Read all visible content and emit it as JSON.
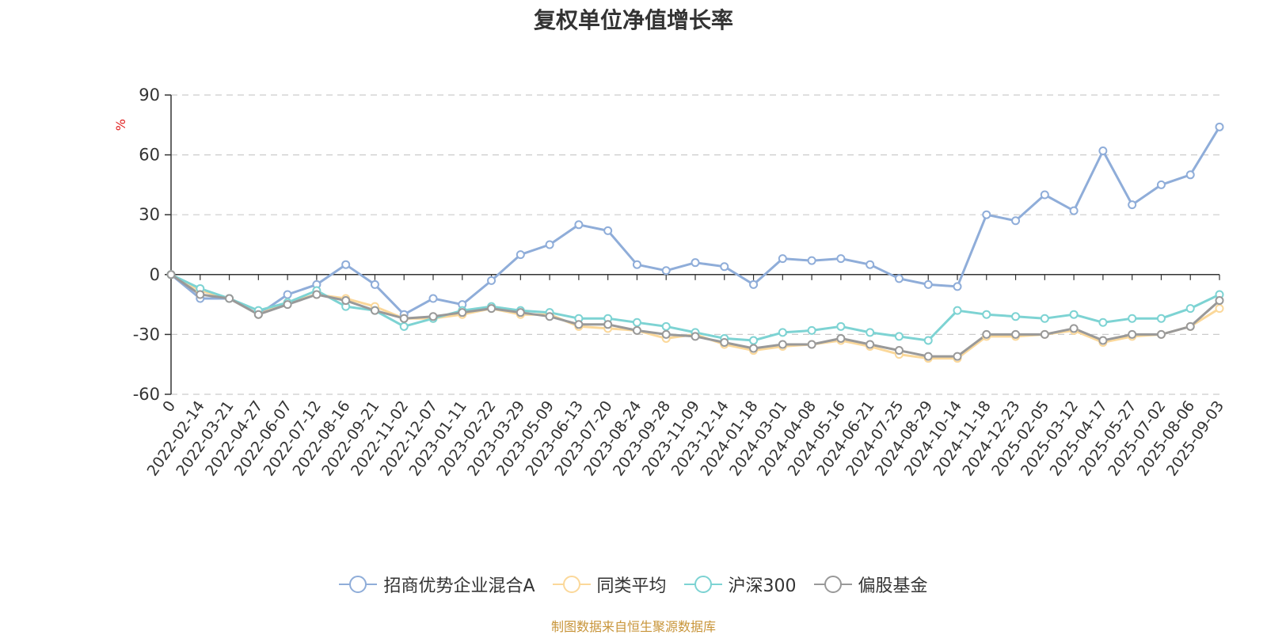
{
  "chart_data": {
    "type": "line",
    "title": "复权单位净值增长率",
    "ylabel": "%",
    "ylim": [
      -60,
      90
    ],
    "yticks": [
      90,
      60,
      30,
      0,
      -30,
      -60
    ],
    "grid": true,
    "legend_position": "bottom",
    "x": [
      "0",
      "2022-02-14",
      "2022-03-21",
      "2022-04-27",
      "2022-06-07",
      "2022-07-12",
      "2022-08-16",
      "2022-09-21",
      "2022-11-02",
      "2022-12-07",
      "2023-01-11",
      "2023-02-22",
      "2023-03-29",
      "2023-05-09",
      "2023-06-13",
      "2023-07-20",
      "2023-08-24",
      "2023-09-28",
      "2023-11-09",
      "2023-12-14",
      "2024-01-18",
      "2024-03-01",
      "2024-04-08",
      "2024-05-16",
      "2024-06-21",
      "2024-07-25",
      "2024-08-29",
      "2024-10-14",
      "2024-11-18",
      "2024-12-23",
      "2025-02-05",
      "2025-03-12",
      "2025-04-17",
      "2025-05-27",
      "2025-07-02",
      "2025-08-06",
      "2025-09-03"
    ],
    "series": [
      {
        "name": "招商优势企业混合A",
        "color": "#8fadd9",
        "values": [
          0,
          -12,
          -12,
          -20,
          -10,
          -5,
          5,
          -5,
          -20,
          -12,
          -15,
          -3,
          10,
          15,
          25,
          22,
          5,
          2,
          6,
          4,
          -5,
          8,
          7,
          8,
          5,
          -2,
          -5,
          -6,
          30,
          27,
          40,
          32,
          62,
          35,
          45,
          50,
          74
        ]
      },
      {
        "name": "同类平均",
        "color": "#fbd89a",
        "values": [
          0,
          -8,
          -12,
          -20,
          -14,
          -10,
          -12,
          -16,
          -22,
          -22,
          -20,
          -17,
          -20,
          -20,
          -26,
          -27,
          -28,
          -32,
          -30,
          -35,
          -38,
          -36,
          -35,
          -33,
          -36,
          -40,
          -42,
          -42,
          -31,
          -31,
          -30,
          -28,
          -34,
          -31,
          -30,
          -26,
          -17
        ]
      },
      {
        "name": "沪深300",
        "color": "#7dd3d3",
        "values": [
          0,
          -7,
          -12,
          -18,
          -14,
          -8,
          -16,
          -18,
          -26,
          -22,
          -18,
          -16,
          -18,
          -19,
          -22,
          -22,
          -24,
          -26,
          -29,
          -32,
          -33,
          -29,
          -28,
          -26,
          -29,
          -31,
          -33,
          -18,
          -20,
          -21,
          -22,
          -20,
          -24,
          -22,
          -22,
          -17,
          -10
        ]
      },
      {
        "name": "偏股基金",
        "color": "#999999",
        "values": [
          0,
          -10,
          -12,
          -20,
          -15,
          -10,
          -13,
          -18,
          -22,
          -21,
          -19,
          -17,
          -19,
          -21,
          -25,
          -25,
          -28,
          -30,
          -31,
          -34,
          -37,
          -35,
          -35,
          -32,
          -35,
          -38,
          -41,
          -41,
          -30,
          -30,
          -30,
          -27,
          -33,
          -30,
          -30,
          -26,
          -13
        ]
      }
    ]
  },
  "source_note": "制图数据来自恒生聚源数据库"
}
